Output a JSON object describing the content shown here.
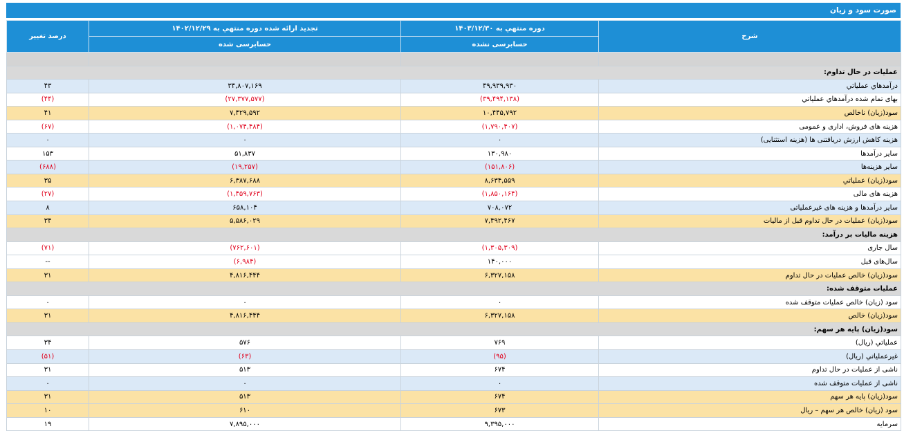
{
  "title": "صورت سود و زیان",
  "headers": {
    "desc": "شرح",
    "current": "دوره منتهي به ۱۴۰۳/۱۲/۳۰",
    "previous": "تجدید ارائه شده دوره منتهي به ۱۴۰۲/۱۲/۲۹",
    "pct": "درصد تغییر",
    "current_status": "حسابرسی نشده",
    "previous_status": "حسابرسی شده"
  },
  "rows": [
    {
      "type": "section",
      "label": "عملیات در حال تداوم:"
    },
    {
      "type": "blue",
      "label": "درآمدهاي عملياتي",
      "cur": "۴۹,۹۳۹,۹۳۰",
      "prev": "۳۴,۸۰۷,۱۶۹",
      "pct": "۴۳"
    },
    {
      "type": "white",
      "label": "بهاى تمام شده درآمدهاي عملياتي",
      "cur": "(۳۹,۴۹۴,۱۳۸)",
      "prev": "(۲۷,۳۷۷,۵۷۷)",
      "pct": "(۴۴)",
      "neg": true
    },
    {
      "type": "orange",
      "label": "سود(زيان) ناخالص",
      "cur": "۱۰,۴۴۵,۷۹۲",
      "prev": "۷,۴۲۹,۵۹۲",
      "pct": "۴۱"
    },
    {
      "type": "white",
      "label": "هزینه هاى فروش، ادارى و عمومى",
      "cur": "(۱,۷۹۰,۴۰۷)",
      "prev": "(۱,۰۷۴,۴۸۴)",
      "pct": "(۶۷)",
      "neg": true
    },
    {
      "type": "blue",
      "label": "هزینه کاهش ارزش دریافتنی ها (هزینه استثنایی)",
      "cur": "۰",
      "prev": "۰",
      "pct": "۰"
    },
    {
      "type": "white",
      "label": "ساير درآمدها",
      "cur": "۱۳۰,۹۸۰",
      "prev": "۵۱,۸۳۷",
      "pct": "۱۵۳"
    },
    {
      "type": "blue",
      "label": "سایر هزینه‌ها",
      "cur": "(۱۵۱,۸۰۶)",
      "prev": "(۱۹,۲۵۷)",
      "pct": "(۶۸۸)",
      "neg": true
    },
    {
      "type": "orange",
      "label": "سود(زيان) عملياتي",
      "cur": "۸,۶۳۴,۵۵۹",
      "prev": "۶,۳۸۷,۶۸۸",
      "pct": "۳۵"
    },
    {
      "type": "white",
      "label": "هزینه هاى مالى",
      "cur": "(۱,۸۵۰,۱۶۴)",
      "prev": "(۱,۴۵۹,۷۶۳)",
      "pct": "(۲۷)",
      "neg": true
    },
    {
      "type": "blue",
      "label": "ساير درآمدها و هزينه هاى غيرعملياتى",
      "cur": "۷۰۸,۰۷۲",
      "prev": "۶۵۸,۱۰۴",
      "pct": "۸"
    },
    {
      "type": "orange",
      "label": "سود(زيان) عمليات در حال تداوم قبل از ماليات",
      "cur": "۷,۴۹۲,۴۶۷",
      "prev": "۵,۵۸۶,۰۲۹",
      "pct": "۳۴"
    },
    {
      "type": "section",
      "label": "هزینه ماليات بر درآمد:"
    },
    {
      "type": "white",
      "label": "سال جاری",
      "cur": "(۱,۳۰۵,۳۰۹)",
      "prev": "(۷۶۲,۶۰۱)",
      "pct": "(۷۱)",
      "neg": true
    },
    {
      "type": "white",
      "label": "سال‌های قبل",
      "cur": "۱۴۰,۰۰۰",
      "prev": "(۶,۹۸۴)",
      "pct": "--",
      "negPrev": true
    },
    {
      "type": "orange",
      "label": "سود(زيان) خالص عمليات در حال تداوم",
      "cur": "۶,۳۲۷,۱۵۸",
      "prev": "۴,۸۱۶,۴۴۴",
      "pct": "۳۱"
    },
    {
      "type": "section",
      "label": "عملیات متوقف شده:"
    },
    {
      "type": "white",
      "label": "سود (زيان) خالص عمليات متوقف شده",
      "cur": "۰",
      "prev": "۰",
      "pct": "۰"
    },
    {
      "type": "orange",
      "label": "سود(زيان) خالص",
      "cur": "۶,۳۲۷,۱۵۸",
      "prev": "۴,۸۱۶,۴۴۴",
      "pct": "۳۱"
    },
    {
      "type": "section",
      "label": "سود(زيان) پايه هر سهم:"
    },
    {
      "type": "white",
      "label": "عملياتي (ريال)",
      "cur": "۷۶۹",
      "prev": "۵۷۶",
      "pct": "۳۴"
    },
    {
      "type": "blue",
      "label": "غيرعملياتي (ريال)",
      "cur": "(۹۵)",
      "prev": "(۶۳)",
      "pct": "(۵۱)",
      "neg": true
    },
    {
      "type": "white",
      "label": "ناشی از عملیات در حال تداوم",
      "cur": "۶۷۴",
      "prev": "۵۱۳",
      "pct": "۳۱"
    },
    {
      "type": "blue",
      "label": "ناشی از عملیات متوقف شده",
      "cur": "۰",
      "prev": "۰",
      "pct": "۰"
    },
    {
      "type": "orange",
      "label": "سود(زيان) پايه هر سهم",
      "cur": "۶۷۴",
      "prev": "۵۱۳",
      "pct": "۳۱"
    },
    {
      "type": "orange",
      "label": "سود (زيان) خالص هر سهم – ريال",
      "cur": "۶۷۳",
      "prev": "۶۱۰",
      "pct": "۱۰"
    },
    {
      "type": "white",
      "label": "سرمايه",
      "cur": "۹,۳۹۵,۰۰۰",
      "prev": "۷,۸۹۵,۰۰۰",
      "pct": "۱۹"
    }
  ]
}
